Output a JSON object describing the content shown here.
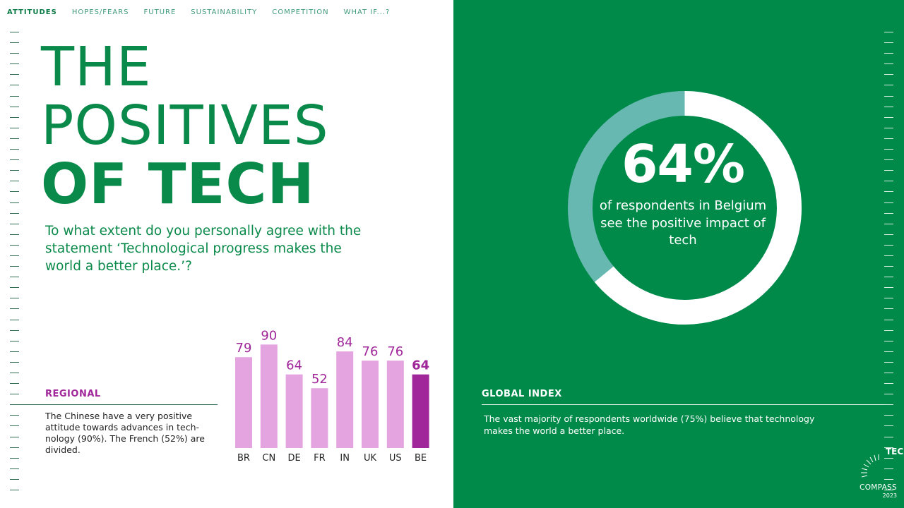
{
  "nav": {
    "items": [
      "ATTITUDES",
      "HOPES/FEARS",
      "FUTURE",
      "SUSTAINABILITY",
      "COMPETITION",
      "WHAT IF...?"
    ],
    "active": "ATTITUDES"
  },
  "title": {
    "line1": "THE",
    "line2": "POSITIVES",
    "line3": "OF TECH"
  },
  "question": "To what extent do you personally agree with the statement ‘Technological progress makes the world a better place.’?",
  "regional": {
    "heading": "REGIONAL",
    "text": "The Chinese have a very positive attitude towards advances in tech-nology (90%). The French (52%) are divided."
  },
  "chart_data": {
    "type": "bar",
    "title": "",
    "xlabel": "",
    "ylabel": "",
    "categories": [
      "BR",
      "CN",
      "DE",
      "FR",
      "IN",
      "UK",
      "US",
      "BE"
    ],
    "values": [
      79,
      90,
      64,
      52,
      84,
      76,
      76,
      64
    ],
    "highlight": "BE",
    "ylim": [
      0,
      100
    ],
    "grid": false,
    "colors": {
      "default": "#e4a4e0",
      "highlight": "#a0279a",
      "label": "#a0279a"
    }
  },
  "donut": {
    "percent": 64,
    "big_label": "64%",
    "caption": "of respondents in Belgium see the positive impact of tech",
    "colors": {
      "filled": "#ffffff",
      "remaining": "#66b8b0"
    }
  },
  "global": {
    "heading": "GLOBAL INDEX",
    "text": "The vast majority of respondents worldwide (75%) believe that technology makes the world a better place."
  },
  "logo": {
    "tech": "TECH",
    "compass": "COMPASS",
    "year": "2023"
  },
  "colors": {
    "green": "#008a4a",
    "title_green": "#0a8a4a",
    "purple": "#a0279a"
  }
}
